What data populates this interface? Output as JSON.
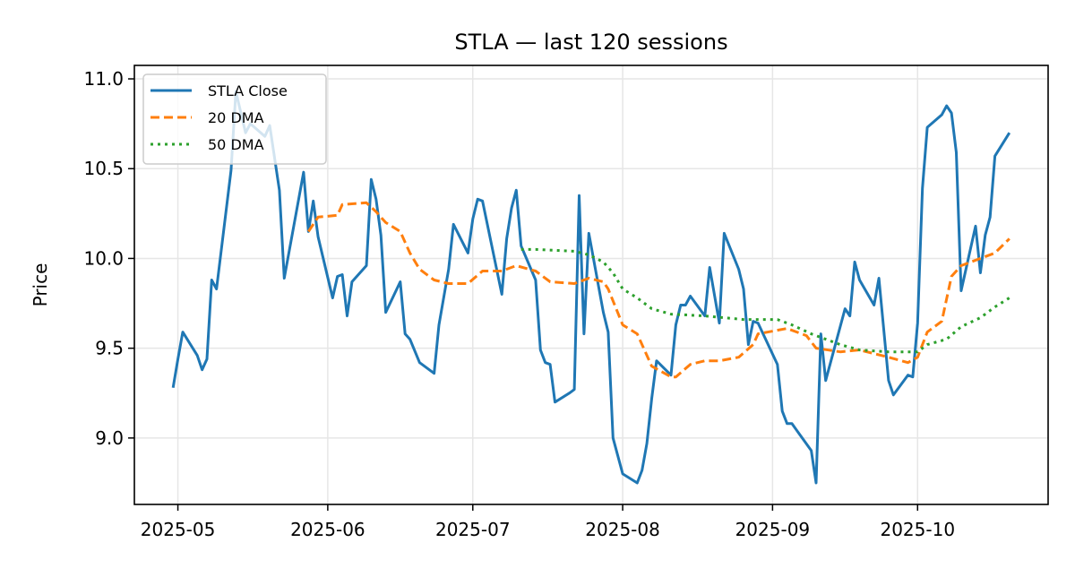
{
  "chart_data": {
    "type": "line",
    "title": "STLA — last 120 sessions",
    "xlabel": "",
    "ylabel": "Price",
    "xlim": [
      "2025-04-22",
      "2025-10-28"
    ],
    "ylim": [
      8.63,
      11.075
    ],
    "x_ticks": [
      "2025-05",
      "2025-06",
      "2025-07",
      "2025-08",
      "2025-09",
      "2025-10"
    ],
    "x_tick_dates": [
      "2025-05-01",
      "2025-06-01",
      "2025-07-01",
      "2025-08-01",
      "2025-09-01",
      "2025-10-01"
    ],
    "y_ticks": [
      "9.0",
      "9.5",
      "10.0",
      "10.5",
      "11.0"
    ],
    "grid": true,
    "legend_position": "top-left",
    "series": [
      {
        "name": "STLA Close",
        "color": "#1f77b4",
        "style": "solid",
        "points": [
          [
            "2025-04-30",
            9.28
          ],
          [
            "2025-05-01",
            9.44
          ],
          [
            "2025-05-02",
            9.59
          ],
          [
            "2025-05-05",
            9.46
          ],
          [
            "2025-05-06",
            9.38
          ],
          [
            "2025-05-07",
            9.44
          ],
          [
            "2025-05-08",
            9.88
          ],
          [
            "2025-05-09",
            9.83
          ],
          [
            "2025-05-12",
            10.49
          ],
          [
            "2025-05-13",
            10.93
          ],
          [
            "2025-05-15",
            10.7
          ],
          [
            "2025-05-16",
            10.75
          ],
          [
            "2025-05-19",
            10.68
          ],
          [
            "2025-05-20",
            10.74
          ],
          [
            "2025-05-22",
            10.38
          ],
          [
            "2025-05-23",
            9.89
          ],
          [
            "2025-05-27",
            10.48
          ],
          [
            "2025-05-28",
            10.15
          ],
          [
            "2025-05-29",
            10.32
          ],
          [
            "2025-05-30",
            10.12
          ],
          [
            "2025-06-02",
            9.78
          ],
          [
            "2025-06-03",
            9.9
          ],
          [
            "2025-06-04",
            9.91
          ],
          [
            "2025-06-05",
            9.68
          ],
          [
            "2025-06-06",
            9.87
          ],
          [
            "2025-06-09",
            9.96
          ],
          [
            "2025-06-10",
            10.44
          ],
          [
            "2025-06-11",
            10.33
          ],
          [
            "2025-06-12",
            10.13
          ],
          [
            "2025-06-13",
            9.7
          ],
          [
            "2025-06-16",
            9.87
          ],
          [
            "2025-06-17",
            9.58
          ],
          [
            "2025-06-18",
            9.55
          ],
          [
            "2025-06-20",
            9.42
          ],
          [
            "2025-06-23",
            9.36
          ],
          [
            "2025-06-24",
            9.63
          ],
          [
            "2025-06-26",
            9.94
          ],
          [
            "2025-06-27",
            10.19
          ],
          [
            "2025-06-30",
            10.03
          ],
          [
            "2025-07-01",
            10.22
          ],
          [
            "2025-07-02",
            10.33
          ],
          [
            "2025-07-03",
            10.32
          ],
          [
            "2025-07-07",
            9.8
          ],
          [
            "2025-07-08",
            10.11
          ],
          [
            "2025-07-09",
            10.28
          ],
          [
            "2025-07-10",
            10.38
          ],
          [
            "2025-07-11",
            10.07
          ],
          [
            "2025-07-14",
            9.88
          ],
          [
            "2025-07-15",
            9.49
          ],
          [
            "2025-07-16",
            9.42
          ],
          [
            "2025-07-17",
            9.41
          ],
          [
            "2025-07-18",
            9.2
          ],
          [
            "2025-07-21",
            9.25
          ],
          [
            "2025-07-22",
            9.27
          ],
          [
            "2025-07-23",
            10.35
          ],
          [
            "2025-07-24",
            9.58
          ],
          [
            "2025-07-25",
            10.14
          ],
          [
            "2025-07-28",
            9.7
          ],
          [
            "2025-07-29",
            9.59
          ],
          [
            "2025-07-30",
            9.0
          ],
          [
            "2025-07-31",
            8.9
          ],
          [
            "2025-08-01",
            8.8
          ],
          [
            "2025-08-04",
            8.75
          ],
          [
            "2025-08-05",
            8.82
          ],
          [
            "2025-08-06",
            8.97
          ],
          [
            "2025-08-07",
            9.22
          ],
          [
            "2025-08-08",
            9.43
          ],
          [
            "2025-08-11",
            9.35
          ],
          [
            "2025-08-12",
            9.63
          ],
          [
            "2025-08-13",
            9.74
          ],
          [
            "2025-08-14",
            9.74
          ],
          [
            "2025-08-15",
            9.79
          ],
          [
            "2025-08-18",
            9.68
          ],
          [
            "2025-08-19",
            9.95
          ],
          [
            "2025-08-21",
            9.64
          ],
          [
            "2025-08-22",
            10.14
          ],
          [
            "2025-08-25",
            9.94
          ],
          [
            "2025-08-26",
            9.83
          ],
          [
            "2025-08-27",
            9.52
          ],
          [
            "2025-08-28",
            9.65
          ],
          [
            "2025-08-29",
            9.64
          ],
          [
            "2025-09-02",
            9.41
          ],
          [
            "2025-09-03",
            9.15
          ],
          [
            "2025-09-04",
            9.08
          ],
          [
            "2025-09-05",
            9.08
          ],
          [
            "2025-09-09",
            8.93
          ],
          [
            "2025-09-10",
            8.75
          ],
          [
            "2025-09-11",
            9.58
          ],
          [
            "2025-09-12",
            9.32
          ],
          [
            "2025-09-16",
            9.72
          ],
          [
            "2025-09-17",
            9.68
          ],
          [
            "2025-09-18",
            9.98
          ],
          [
            "2025-09-19",
            9.88
          ],
          [
            "2025-09-22",
            9.74
          ],
          [
            "2025-09-23",
            9.89
          ],
          [
            "2025-09-25",
            9.32
          ],
          [
            "2025-09-26",
            9.24
          ],
          [
            "2025-09-29",
            9.35
          ],
          [
            "2025-09-30",
            9.34
          ],
          [
            "2025-10-01",
            9.64
          ],
          [
            "2025-10-02",
            10.39
          ],
          [
            "2025-10-03",
            10.73
          ],
          [
            "2025-10-06",
            10.8
          ],
          [
            "2025-10-07",
            10.85
          ],
          [
            "2025-10-08",
            10.81
          ],
          [
            "2025-10-09",
            10.59
          ],
          [
            "2025-10-10",
            9.82
          ],
          [
            "2025-10-13",
            10.18
          ],
          [
            "2025-10-14",
            9.92
          ],
          [
            "2025-10-15",
            10.13
          ],
          [
            "2025-10-16",
            10.23
          ],
          [
            "2025-10-17",
            10.57
          ],
          [
            "2025-10-20",
            10.7
          ]
        ]
      },
      {
        "name": "20 DMA",
        "color": "#ff7f0e",
        "style": "dashed",
        "points": [
          [
            "2025-05-28",
            10.15
          ],
          [
            "2025-05-30",
            10.23
          ],
          [
            "2025-06-03",
            10.24
          ],
          [
            "2025-06-04",
            10.3
          ],
          [
            "2025-06-09",
            10.31
          ],
          [
            "2025-06-11",
            10.26
          ],
          [
            "2025-06-13",
            10.2
          ],
          [
            "2025-06-16",
            10.15
          ],
          [
            "2025-06-18",
            10.03
          ],
          [
            "2025-06-20",
            9.94
          ],
          [
            "2025-06-23",
            9.88
          ],
          [
            "2025-06-26",
            9.86
          ],
          [
            "2025-06-30",
            9.86
          ],
          [
            "2025-07-03",
            9.93
          ],
          [
            "2025-07-07",
            9.93
          ],
          [
            "2025-07-10",
            9.96
          ],
          [
            "2025-07-14",
            9.93
          ],
          [
            "2025-07-17",
            9.87
          ],
          [
            "2025-07-22",
            9.86
          ],
          [
            "2025-07-25",
            9.89
          ],
          [
            "2025-07-28",
            9.87
          ],
          [
            "2025-07-29",
            9.83
          ],
          [
            "2025-08-01",
            9.63
          ],
          [
            "2025-08-04",
            9.58
          ],
          [
            "2025-08-07",
            9.4
          ],
          [
            "2025-08-11",
            9.34
          ],
          [
            "2025-08-12",
            9.34
          ],
          [
            "2025-08-15",
            9.41
          ],
          [
            "2025-08-18",
            9.43
          ],
          [
            "2025-08-21",
            9.43
          ],
          [
            "2025-08-25",
            9.45
          ],
          [
            "2025-08-28",
            9.52
          ],
          [
            "2025-08-29",
            9.58
          ],
          [
            "2025-09-04",
            9.61
          ],
          [
            "2025-09-08",
            9.57
          ],
          [
            "2025-09-10",
            9.5
          ],
          [
            "2025-09-15",
            9.48
          ],
          [
            "2025-09-19",
            9.49
          ],
          [
            "2025-09-25",
            9.45
          ],
          [
            "2025-09-29",
            9.42
          ],
          [
            "2025-10-01",
            9.45
          ],
          [
            "2025-10-03",
            9.59
          ],
          [
            "2025-10-06",
            9.65
          ],
          [
            "2025-10-08",
            9.9
          ],
          [
            "2025-10-10",
            9.96
          ],
          [
            "2025-10-14",
            10.0
          ],
          [
            "2025-10-17",
            10.03
          ],
          [
            "2025-10-20",
            10.11
          ]
        ]
      },
      {
        "name": "50 DMA",
        "color": "#2ca02c",
        "style": "dotted",
        "points": [
          [
            "2025-07-11",
            10.05
          ],
          [
            "2025-07-14",
            10.05
          ],
          [
            "2025-07-22",
            10.04
          ],
          [
            "2025-07-25",
            10.02
          ],
          [
            "2025-07-28",
            9.98
          ],
          [
            "2025-07-30",
            9.92
          ],
          [
            "2025-08-01",
            9.83
          ],
          [
            "2025-08-04",
            9.78
          ],
          [
            "2025-08-07",
            9.72
          ],
          [
            "2025-08-11",
            9.69
          ],
          [
            "2025-08-18",
            9.68
          ],
          [
            "2025-08-26",
            9.66
          ],
          [
            "2025-09-02",
            9.66
          ],
          [
            "2025-09-05",
            9.63
          ],
          [
            "2025-09-09",
            9.58
          ],
          [
            "2025-09-15",
            9.52
          ],
          [
            "2025-09-19",
            9.49
          ],
          [
            "2025-09-25",
            9.48
          ],
          [
            "2025-10-01",
            9.48
          ],
          [
            "2025-10-03",
            9.52
          ],
          [
            "2025-10-07",
            9.55
          ],
          [
            "2025-10-10",
            9.62
          ],
          [
            "2025-10-14",
            9.67
          ],
          [
            "2025-10-17",
            9.73
          ],
          [
            "2025-10-20",
            9.78
          ]
        ]
      }
    ]
  }
}
